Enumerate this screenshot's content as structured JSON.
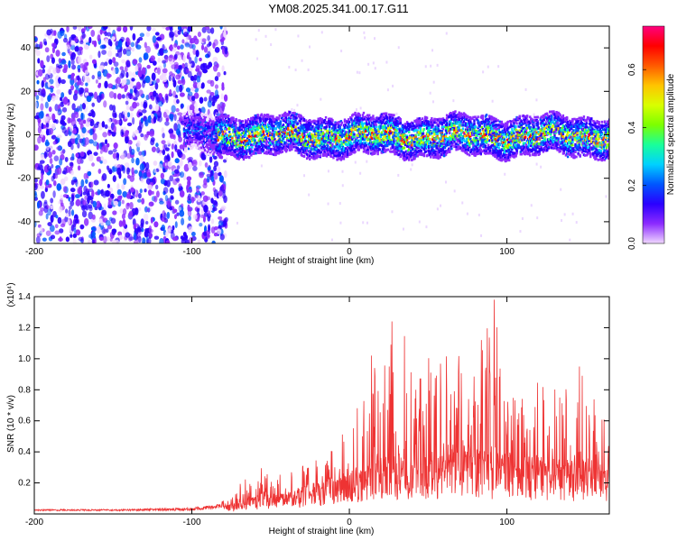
{
  "title": "YM08.2025.341.00.17.G11",
  "colorbar": {
    "label": "Normalized spectral amplitude",
    "ticks": [
      "0.0",
      "0.2",
      "0.4",
      "0.6"
    ],
    "range": [
      0,
      0.75
    ],
    "colors": [
      "#f0d8ff",
      "#8c2bff",
      "#2a00ff",
      "#0057ff",
      "#00d1ff",
      "#19ff9a",
      "#7cff00",
      "#d9ff00",
      "#ffc400",
      "#ff5a00",
      "#ff0000",
      "#ff007f"
    ]
  },
  "chart_data": [
    {
      "type": "heatmap",
      "name": "spectrogram",
      "xlabel": "Height of straight line (km)",
      "ylabel": "Frequency (Hz)",
      "xlim": [
        -200,
        165
      ],
      "ylim": [
        -50,
        50
      ],
      "xticks": [
        -200,
        -100,
        0,
        100
      ],
      "xtick_labels": [
        "-200",
        "-100",
        "0",
        "100"
      ],
      "yticks": [
        -40,
        -20,
        0,
        20,
        40
      ],
      "ytick_labels": [
        "-40",
        "-20",
        "0",
        "20",
        "40"
      ],
      "description_regions": [
        {
          "x_range": [
            -200,
            -80
          ],
          "freq_range": [
            -50,
            50
          ],
          "amplitude": "low scattered noise (0.0-0.15)"
        },
        {
          "x_range": [
            -105,
            165
          ],
          "freq_range": [
            -8,
            8
          ],
          "amplitude": "band centered near 0 Hz, peaks 0.3-0.75"
        }
      ]
    },
    {
      "type": "line",
      "name": "snr",
      "xlabel": "Height of straight line (km)",
      "ylabel": "SNR (10 * v/v)",
      "y_multiplier": "(x10⁴)",
      "xlim": [
        -200,
        165
      ],
      "ylim": [
        0,
        1.4
      ],
      "xticks": [
        -200,
        -100,
        0,
        100
      ],
      "xtick_labels": [
        "-200",
        "-100",
        "0",
        "100"
      ],
      "yticks": [
        0.2,
        0.4,
        0.6,
        0.8,
        1.0,
        1.2,
        1.4
      ],
      "ytick_labels": [
        "0.2",
        "0.4",
        "0.6",
        "0.8",
        "1.0",
        "1.2",
        "1.4"
      ],
      "color": "#ee3333",
      "envelope": {
        "x": [
          -200,
          -150,
          -100,
          -85,
          -75,
          -65,
          -55,
          -45,
          -35,
          -25,
          -15,
          -5,
          0,
          10,
          20,
          30,
          40,
          50,
          60,
          70,
          80,
          90,
          100,
          110,
          120,
          130,
          140,
          150,
          165
        ],
        "peak": [
          0.03,
          0.03,
          0.04,
          0.06,
          0.12,
          0.25,
          0.3,
          0.25,
          0.28,
          0.35,
          0.42,
          0.5,
          0.6,
          0.85,
          1.0,
          1.24,
          1.05,
          1.0,
          1.1,
          1.12,
          1.08,
          1.38,
          0.9,
          0.95,
          0.85,
          0.8,
          0.95,
          0.92,
          0.7
        ],
        "base": [
          0.02,
          0.02,
          0.02,
          0.03,
          0.05,
          0.08,
          0.1,
          0.1,
          0.12,
          0.15,
          0.18,
          0.2,
          0.22,
          0.25,
          0.28,
          0.3,
          0.3,
          0.32,
          0.32,
          0.33,
          0.32,
          0.32,
          0.3,
          0.3,
          0.28,
          0.28,
          0.28,
          0.27,
          0.26
        ]
      },
      "annotated_peaks": [
        {
          "x": 27,
          "y": 1.24
        },
        {
          "x": 92,
          "y": 1.38
        },
        {
          "x": 14,
          "y": 1.02
        },
        {
          "x": 146,
          "y": 0.95
        }
      ]
    }
  ]
}
